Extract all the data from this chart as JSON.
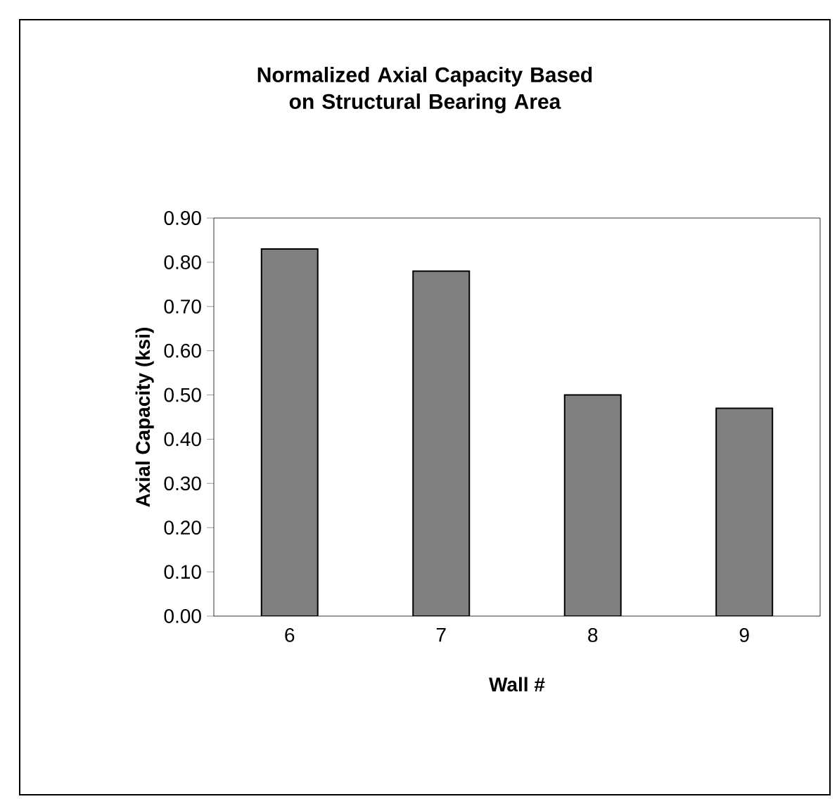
{
  "chart_data": {
    "type": "bar",
    "title": "Normalized Axial Capacity Based on Structural Bearing Area",
    "xlabel": "Wall #",
    "ylabel": "Axial Capacity (ksi)",
    "categories": [
      "6",
      "7",
      "8",
      "9"
    ],
    "values": [
      0.83,
      0.78,
      0.5,
      0.47
    ],
    "color": "#808080",
    "ylim": [
      0,
      0.9
    ],
    "yticks": [
      {
        "value": 0,
        "label": "0.00"
      },
      {
        "value": 0.1,
        "label": "0.10"
      },
      {
        "value": 0.2,
        "label": "0.20"
      },
      {
        "value": 0.3,
        "label": "0.30"
      },
      {
        "value": 0.4,
        "label": "0.40"
      },
      {
        "value": 0.5,
        "label": "0.50"
      },
      {
        "value": 0.6,
        "label": "0.60"
      },
      {
        "value": 0.7,
        "label": "0.70"
      },
      {
        "value": 0.8,
        "label": "0.80"
      },
      {
        "value": 0.9,
        "label": "0.90"
      }
    ],
    "grid": false
  }
}
